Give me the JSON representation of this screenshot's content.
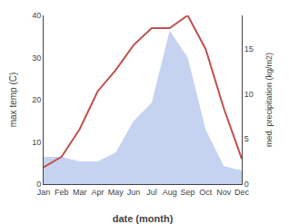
{
  "chart_data": {
    "type": "line",
    "xlabel": "date (month)",
    "ylabel": "max temp (C)",
    "y2label": "med. precipitation (kg/m2)",
    "categories": [
      "Jan",
      "Feb",
      "Mar",
      "Apr",
      "May",
      "Jun",
      "Jul",
      "Aug",
      "Sep",
      "Oct",
      "Nov",
      "Dec"
    ],
    "series": [
      {
        "type": "area",
        "axis": "y2",
        "color": "#c5d3f0",
        "values": [
          3.0,
          3.0,
          2.5,
          2.5,
          3.5,
          7.0,
          9.0,
          17.0,
          14.0,
          6.0,
          2.0,
          1.5
        ]
      },
      {
        "type": "line",
        "color": "#c0504d",
        "values": [
          4.0,
          6.5,
          13.0,
          22.0,
          27.0,
          33.0,
          37.0,
          37.0,
          40.0,
          32.0,
          18.0,
          6.0
        ]
      }
    ],
    "ylim": [
      0,
      40
    ],
    "yticks": [
      0,
      10,
      20,
      30,
      40
    ],
    "y2lim": [
      0,
      18.67
    ],
    "y2ticks": [
      0,
      5,
      10,
      15
    ],
    "grid": false
  }
}
